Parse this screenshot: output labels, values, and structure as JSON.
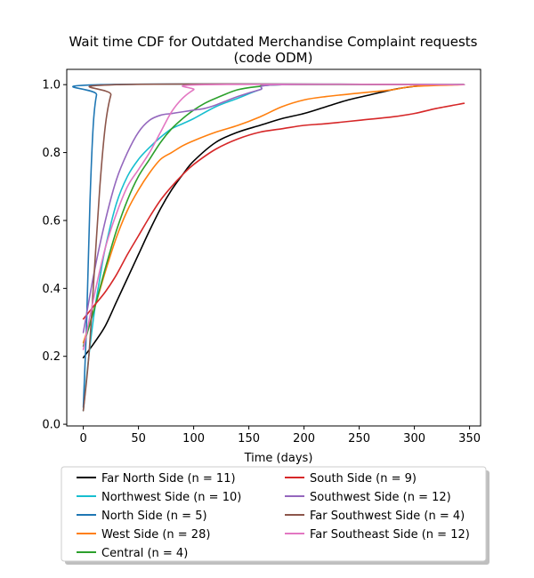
{
  "chart_data": {
    "type": "line",
    "title_line1": "Wait time CDF for Outdated Merchandise Complaint  requests",
    "title_line2": "(code ODM)",
    "xlabel": "Time (days)",
    "ylabel": "",
    "xlim": [
      -15,
      360
    ],
    "ylim": [
      -0.005,
      1.045
    ],
    "xticks": [
      0,
      50,
      100,
      150,
      200,
      250,
      300,
      350
    ],
    "yticks": [
      0.0,
      0.2,
      0.4,
      0.6,
      0.8,
      1.0
    ],
    "xtick_labels": [
      "0",
      "50",
      "100",
      "150",
      "200",
      "250",
      "300",
      "350"
    ],
    "ytick_labels": [
      "0.0",
      "0.2",
      "0.4",
      "0.6",
      "0.8",
      "1.0"
    ],
    "grid": false,
    "legend_position": "below plot, two columns",
    "series": [
      {
        "name": "Far North Side (n = 11)",
        "color": "#000000",
        "points": [
          [
            0,
            0.196
          ],
          [
            10,
            0.24
          ],
          [
            20,
            0.29
          ],
          [
            30,
            0.36
          ],
          [
            40,
            0.43
          ],
          [
            50,
            0.5
          ],
          [
            60,
            0.57
          ],
          [
            70,
            0.635
          ],
          [
            80,
            0.69
          ],
          [
            90,
            0.735
          ],
          [
            100,
            0.775
          ],
          [
            120,
            0.83
          ],
          [
            140,
            0.86
          ],
          [
            160,
            0.88
          ],
          [
            180,
            0.9
          ],
          [
            200,
            0.915
          ],
          [
            220,
            0.935
          ],
          [
            240,
            0.955
          ],
          [
            260,
            0.97
          ],
          [
            280,
            0.985
          ],
          [
            300,
            0.995
          ],
          [
            320,
            0.999
          ],
          [
            345,
            1.0
          ]
        ]
      },
      {
        "name": "Northwest Side (n = 10)",
        "color": "#17becf",
        "points": [
          [
            0,
            0.04
          ],
          [
            5,
            0.2
          ],
          [
            10,
            0.33
          ],
          [
            15,
            0.43
          ],
          [
            20,
            0.52
          ],
          [
            30,
            0.65
          ],
          [
            40,
            0.73
          ],
          [
            50,
            0.78
          ],
          [
            60,
            0.815
          ],
          [
            70,
            0.845
          ],
          [
            80,
            0.87
          ],
          [
            90,
            0.885
          ],
          [
            100,
            0.9
          ],
          [
            120,
            0.935
          ],
          [
            140,
            0.96
          ],
          [
            160,
            0.985
          ],
          [
            180,
            1.0
          ],
          [
            345,
            1.0
          ]
        ]
      },
      {
        "name": "North Side (n = 5)",
        "color": "#1f77b4",
        "points": [
          [
            0,
            0.05
          ],
          [
            3,
            0.3
          ],
          [
            6,
            0.65
          ],
          [
            9,
            0.88
          ],
          [
            12,
            0.97
          ],
          [
            16,
            1.0
          ],
          [
            345,
            1.0
          ]
        ]
      },
      {
        "name": "West Side (n = 28)",
        "color": "#ff7f0e",
        "points": [
          [
            0,
            0.24
          ],
          [
            10,
            0.34
          ],
          [
            20,
            0.45
          ],
          [
            30,
            0.55
          ],
          [
            40,
            0.63
          ],
          [
            50,
            0.69
          ],
          [
            60,
            0.74
          ],
          [
            70,
            0.78
          ],
          [
            80,
            0.8
          ],
          [
            90,
            0.82
          ],
          [
            100,
            0.835
          ],
          [
            120,
            0.86
          ],
          [
            140,
            0.88
          ],
          [
            160,
            0.905
          ],
          [
            180,
            0.935
          ],
          [
            200,
            0.955
          ],
          [
            220,
            0.965
          ],
          [
            250,
            0.975
          ],
          [
            280,
            0.985
          ],
          [
            300,
            0.995
          ],
          [
            345,
            1.0
          ]
        ]
      },
      {
        "name": "Central (n = 4)",
        "color": "#2ca02c",
        "points": [
          [
            0,
            0.23
          ],
          [
            10,
            0.34
          ],
          [
            20,
            0.46
          ],
          [
            30,
            0.57
          ],
          [
            40,
            0.66
          ],
          [
            50,
            0.73
          ],
          [
            60,
            0.78
          ],
          [
            70,
            0.83
          ],
          [
            80,
            0.87
          ],
          [
            90,
            0.9
          ],
          [
            100,
            0.925
          ],
          [
            110,
            0.945
          ],
          [
            120,
            0.96
          ],
          [
            140,
            0.985
          ],
          [
            160,
            0.995
          ],
          [
            180,
            1.0
          ],
          [
            345,
            1.0
          ]
        ]
      },
      {
        "name": "South Side (n = 9)",
        "color": "#d62728",
        "points": [
          [
            0,
            0.31
          ],
          [
            10,
            0.35
          ],
          [
            20,
            0.39
          ],
          [
            30,
            0.44
          ],
          [
            40,
            0.5
          ],
          [
            50,
            0.555
          ],
          [
            60,
            0.61
          ],
          [
            70,
            0.66
          ],
          [
            80,
            0.7
          ],
          [
            90,
            0.735
          ],
          [
            100,
            0.765
          ],
          [
            120,
            0.81
          ],
          [
            140,
            0.84
          ],
          [
            160,
            0.86
          ],
          [
            180,
            0.87
          ],
          [
            200,
            0.88
          ],
          [
            220,
            0.885
          ],
          [
            250,
            0.895
          ],
          [
            280,
            0.905
          ],
          [
            300,
            0.915
          ],
          [
            320,
            0.93
          ],
          [
            345,
            0.945
          ]
        ]
      },
      {
        "name": "Southwest Side (n = 12)",
        "color": "#9467bd",
        "points": [
          [
            0,
            0.27
          ],
          [
            10,
            0.45
          ],
          [
            20,
            0.6
          ],
          [
            30,
            0.72
          ],
          [
            40,
            0.8
          ],
          [
            50,
            0.86
          ],
          [
            60,
            0.895
          ],
          [
            70,
            0.91
          ],
          [
            80,
            0.915
          ],
          [
            90,
            0.92
          ],
          [
            100,
            0.925
          ],
          [
            110,
            0.93
          ],
          [
            120,
            0.94
          ],
          [
            140,
            0.965
          ],
          [
            160,
            0.985
          ],
          [
            180,
            1.0
          ],
          [
            345,
            1.0
          ]
        ]
      },
      {
        "name": "Far Southwest Side (n = 4)",
        "color": "#8c564b",
        "points": [
          [
            0,
            0.04
          ],
          [
            5,
            0.2
          ],
          [
            10,
            0.45
          ],
          [
            15,
            0.7
          ],
          [
            20,
            0.88
          ],
          [
            25,
            0.97
          ],
          [
            30,
            1.0
          ],
          [
            345,
            1.0
          ]
        ]
      },
      {
        "name": "Far Southeast Side (n = 12)",
        "color": "#e377c2",
        "points": [
          [
            0,
            0.22
          ],
          [
            10,
            0.38
          ],
          [
            20,
            0.52
          ],
          [
            30,
            0.62
          ],
          [
            40,
            0.7
          ],
          [
            50,
            0.75
          ],
          [
            60,
            0.8
          ],
          [
            70,
            0.86
          ],
          [
            80,
            0.92
          ],
          [
            90,
            0.96
          ],
          [
            100,
            0.985
          ],
          [
            110,
            1.0
          ],
          [
            345,
            1.0
          ]
        ]
      }
    ],
    "legend_columns": [
      [
        "Far North Side (n = 11)",
        "Northwest Side (n = 10)",
        "North Side (n = 5)",
        "West Side (n = 28)",
        "Central (n = 4)"
      ],
      [
        "South Side (n = 9)",
        "Southwest Side (n = 12)",
        "Far Southwest Side (n = 4)",
        "Far Southeast Side (n = 12)"
      ]
    ]
  }
}
